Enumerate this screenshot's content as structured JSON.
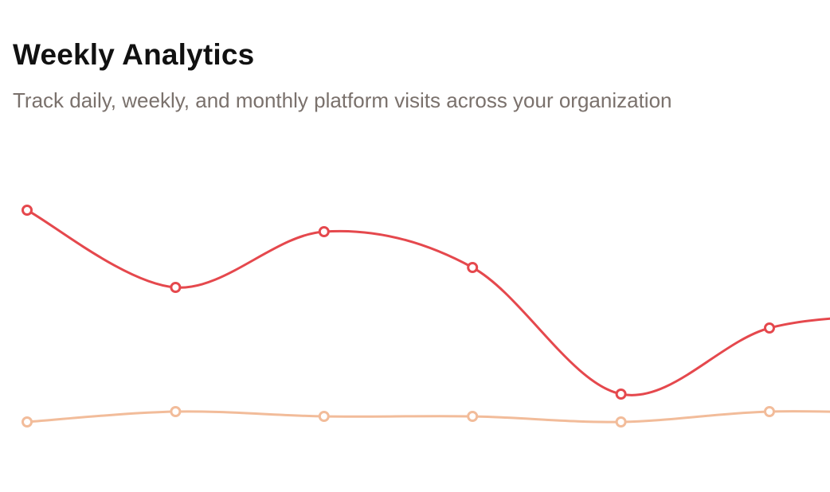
{
  "header": {
    "title": "Weekly Analytics",
    "subtitle": "Track daily, weekly, and monthly platform visits across your organization"
  },
  "chart_data": {
    "type": "line",
    "title": "Weekly Analytics",
    "subtitle": "Track daily, weekly, and monthly platform visits across your organization",
    "x": [
      1,
      2,
      3,
      4,
      5,
      6,
      7
    ],
    "series": [
      {
        "values": [
          316,
          219,
          289,
          244,
          85,
          168,
          185
        ],
        "color": "#e5484d"
      },
      {
        "values": [
          50,
          63,
          57,
          57,
          50,
          63,
          60
        ],
        "color": "#f2bc9a"
      }
    ],
    "curve": "smooth",
    "markers": "hollow-circle",
    "ylim": [
      0,
      330
    ],
    "grid": false,
    "axes_visible": false,
    "legend": "none"
  }
}
